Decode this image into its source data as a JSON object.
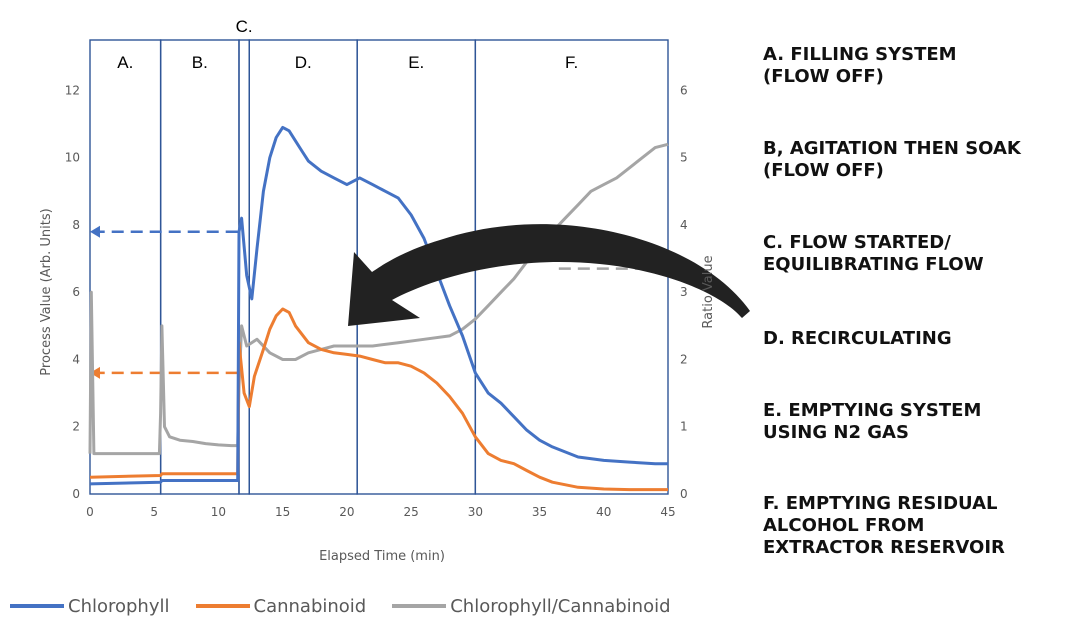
{
  "chart_data": {
    "type": "line",
    "xlabel": "Elapsed Time (min)",
    "ylabel": "Process Value (Arb. Units)",
    "y2label": "Ratio Value",
    "xlim": [
      0,
      45
    ],
    "ylim": [
      0,
      13.5
    ],
    "y2lim": [
      0,
      6.75
    ],
    "x_ticks": [
      "0",
      "5",
      "10",
      "15",
      "20",
      "25",
      "30",
      "35",
      "40",
      "45"
    ],
    "y_ticks": [
      "0",
      "2",
      "4",
      "6",
      "8",
      "10",
      "12"
    ],
    "y2_ticks": [
      "0",
      "1",
      "2",
      "3",
      "4",
      "5",
      "6"
    ],
    "phases": [
      {
        "label": "A.",
        "start": 0,
        "end": 5.5
      },
      {
        "label": "B.",
        "start": 5.5,
        "end": 11.6
      },
      {
        "label": "C.",
        "start": 11.6,
        "end": 12.4
      },
      {
        "label": "D.",
        "start": 12.4,
        "end": 20.8
      },
      {
        "label": "E.",
        "start": 20.8,
        "end": 30.0
      },
      {
        "label": "F.",
        "start": 30.0,
        "end": 45.0
      }
    ],
    "reference_arrows": [
      {
        "series": "Chlorophyll",
        "axis": "left",
        "y": 7.8,
        "from_x": 11.5,
        "to_x": 0
      },
      {
        "series": "Cannabinoid",
        "axis": "left",
        "y": 3.6,
        "from_x": 11.5,
        "to_x": 0
      },
      {
        "series": "Chlorophyll/Cannabinoid",
        "axis": "right",
        "y": 3.35,
        "from_x": 36.5,
        "to_x": 45
      }
    ],
    "series": [
      {
        "name": "Chlorophyll",
        "axis": "left",
        "color": "#4472C4",
        "x": [
          0,
          5.5,
          5.6,
          11.5,
          11.6,
          11.8,
          12.2,
          12.6,
          13,
          13.5,
          14,
          14.5,
          15,
          15.5,
          16,
          16.5,
          17,
          18,
          19,
          20,
          21,
          22,
          23,
          24,
          25,
          26,
          27,
          28,
          29,
          30,
          31,
          32,
          33,
          34,
          35,
          36,
          38,
          40,
          42,
          44,
          45
        ],
        "values": [
          0.3,
          0.35,
          0.4,
          0.4,
          7.8,
          8.2,
          6.5,
          5.8,
          7.3,
          9.0,
          10.0,
          10.6,
          10.9,
          10.8,
          10.5,
          10.2,
          9.9,
          9.6,
          9.4,
          9.2,
          9.4,
          9.2,
          9.0,
          8.8,
          8.3,
          7.6,
          6.6,
          5.6,
          4.7,
          3.6,
          3.0,
          2.7,
          2.3,
          1.9,
          1.6,
          1.4,
          1.1,
          1.0,
          0.95,
          0.9,
          0.9
        ]
      },
      {
        "name": "Cannabinoid",
        "axis": "left",
        "color": "#ED7D31",
        "x": [
          0,
          5.5,
          5.6,
          11.5,
          11.6,
          12,
          12.4,
          12.8,
          13.5,
          14,
          14.5,
          15,
          15.5,
          16,
          17,
          18,
          19,
          20,
          21,
          22,
          23,
          24,
          25,
          26,
          27,
          28,
          29,
          30,
          31,
          32,
          33,
          34,
          35,
          36,
          38,
          40,
          42,
          45
        ],
        "values": [
          0.5,
          0.55,
          0.6,
          0.6,
          4.5,
          3.0,
          2.6,
          3.5,
          4.3,
          4.9,
          5.3,
          5.5,
          5.4,
          5.0,
          4.5,
          4.3,
          4.2,
          4.15,
          4.1,
          4.0,
          3.9,
          3.9,
          3.8,
          3.6,
          3.3,
          2.9,
          2.4,
          1.7,
          1.2,
          1.0,
          0.9,
          0.7,
          0.5,
          0.35,
          0.2,
          0.15,
          0.13,
          0.13
        ]
      },
      {
        "name": "Chlorophyll/Cannabinoid",
        "axis": "right",
        "color": "#A5A5A5",
        "x": [
          0,
          0.1,
          0.3,
          5.4,
          5.5,
          5.6,
          5.8,
          6.2,
          7,
          8,
          9,
          10,
          11,
          11.5,
          11.6,
          11.8,
          12.2,
          13,
          14,
          15,
          16,
          17,
          18,
          19,
          20,
          21,
          22,
          24,
          26,
          28,
          29,
          30,
          31,
          32,
          33,
          34,
          35,
          36,
          37,
          38,
          39,
          40,
          41,
          42,
          43,
          44,
          45
        ],
        "values": [
          0.6,
          3.0,
          0.6,
          0.6,
          1.2,
          2.5,
          1.0,
          0.85,
          0.8,
          0.78,
          0.75,
          0.73,
          0.72,
          0.72,
          1.6,
          2.5,
          2.2,
          2.3,
          2.1,
          2.0,
          2.0,
          2.1,
          2.15,
          2.2,
          2.2,
          2.2,
          2.2,
          2.25,
          2.3,
          2.35,
          2.45,
          2.6,
          2.8,
          3.0,
          3.2,
          3.45,
          3.7,
          3.9,
          4.1,
          4.3,
          4.5,
          4.6,
          4.7,
          4.85,
          5.0,
          5.15,
          5.2
        ]
      }
    ],
    "annotation_arrow": {
      "color": "#222222",
      "direction": "left"
    }
  },
  "notes": [
    "A. FILLING SYSTEM\n(FLOW OFF)",
    "B, AGITATION THEN SOAK\n(FLOW OFF)",
    "C. FLOW STARTED/\nEQUILIBRATING FLOW",
    "D. RECIRCULATING",
    "E. EMPTYING SYSTEM\nUSING N2 GAS",
    "F. EMPTYING RESIDUAL\nALCOHOL FROM\nEXTRACTOR RESERVOIR"
  ]
}
